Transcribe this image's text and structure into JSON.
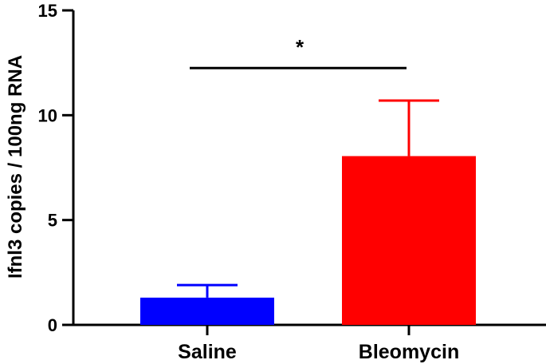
{
  "chart_data": {
    "type": "bar",
    "title": "",
    "xlabel": "",
    "ylabel": "Ifnl3 copies / 100ng RNA",
    "ylim": [
      0,
      15
    ],
    "yticks": [
      0,
      5,
      10,
      15
    ],
    "grid": false,
    "categories": [
      "Saline",
      "Bleomycin"
    ],
    "series": [
      {
        "values": [
          1.3,
          8.05
        ],
        "errors": [
          0.6,
          2.65
        ],
        "colors": [
          "#0000ff",
          "#ff0000"
        ]
      }
    ],
    "annotations": [
      {
        "text": "*",
        "between": [
          "Saline",
          "Bleomycin"
        ],
        "y": 12.25
      }
    ]
  }
}
